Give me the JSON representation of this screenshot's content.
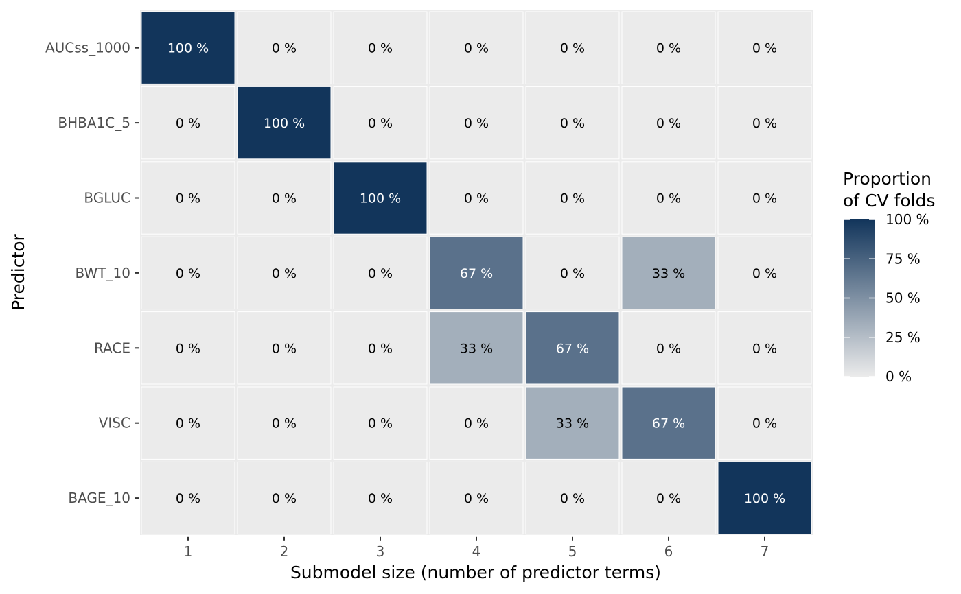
{
  "chart_data": {
    "type": "heatmap",
    "title": "",
    "xlabel": "Submodel size (number of predictor terms)",
    "ylabel": "Predictor",
    "x_categories": [
      "1",
      "2",
      "3",
      "4",
      "5",
      "6",
      "7"
    ],
    "y_categories": [
      "AUCss_1000",
      "BHBA1C_5",
      "BGLUC",
      "BWT_10",
      "RACE",
      "VISC",
      "BAGE_10"
    ],
    "values": [
      [
        100,
        0,
        0,
        0,
        0,
        0,
        0
      ],
      [
        0,
        100,
        0,
        0,
        0,
        0,
        0
      ],
      [
        0,
        0,
        100,
        0,
        0,
        0,
        0
      ],
      [
        0,
        0,
        0,
        67,
        0,
        33,
        0
      ],
      [
        0,
        0,
        0,
        33,
        67,
        0,
        0
      ],
      [
        0,
        0,
        0,
        0,
        33,
        67,
        0
      ],
      [
        0,
        0,
        0,
        0,
        0,
        0,
        100
      ]
    ],
    "value_suffix": " %",
    "color_range": [
      0,
      100
    ],
    "colors": {
      "low": "#ebebeb",
      "high": "#12355b",
      "grid": "#ffffff",
      "text_dark": "#000000",
      "text_light": "#ffffff"
    },
    "legend": {
      "title_lines": [
        "Proportion",
        "of CV folds"
      ],
      "ticks": [
        "100 %",
        "75 %",
        "50 %",
        "25 %",
        "0 %"
      ],
      "tick_values": [
        100,
        75,
        50,
        25,
        0
      ],
      "placement": "right"
    }
  }
}
